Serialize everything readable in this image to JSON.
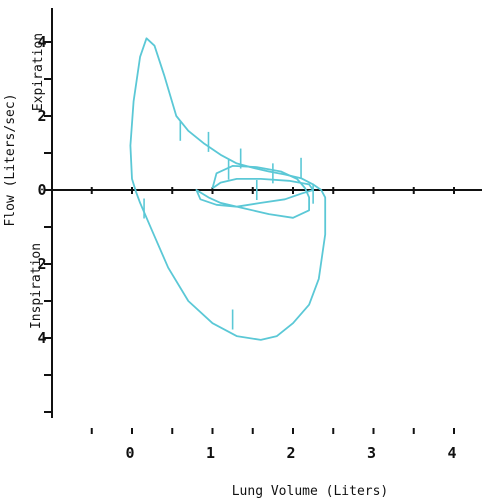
{
  "chart_data": {
    "type": "line",
    "xlabel": "Lung Volume (Liters)",
    "ylabel": "Flow (Liters/sec)",
    "ylabel_upper": "Expiration",
    "ylabel_lower": "Inspiration",
    "xlim": [
      -1,
      5
    ],
    "ylim": [
      -6,
      5
    ],
    "x_ticks": [
      0,
      1,
      2,
      3,
      4
    ],
    "x_tick_labels": [
      "0",
      "1",
      "2",
      "3",
      "4"
    ],
    "y_labeled_ticks": [
      4,
      2,
      0,
      -2,
      -4
    ],
    "y_tick_labels": [
      "4",
      "2",
      "0",
      "2",
      "4"
    ],
    "line_color": "#5bc8d6",
    "series": [
      {
        "points": [
          [
            0.05,
            -0.05
          ],
          [
            0.0,
            0.3
          ],
          [
            -0.02,
            1.2
          ],
          [
            0.02,
            2.4
          ],
          [
            0.1,
            3.6
          ],
          [
            0.18,
            4.1
          ],
          [
            0.28,
            3.9
          ],
          [
            0.4,
            3.1
          ],
          [
            0.55,
            2.0
          ],
          [
            0.7,
            1.6
          ],
          [
            0.9,
            1.25
          ],
          [
            1.1,
            0.95
          ],
          [
            1.3,
            0.72
          ],
          [
            1.5,
            0.6
          ],
          [
            1.7,
            0.5
          ],
          [
            1.9,
            0.42
          ],
          [
            2.1,
            0.32
          ],
          [
            2.25,
            0.15
          ],
          [
            2.35,
            0.0
          ],
          [
            2.4,
            -0.2
          ],
          [
            2.4,
            -1.2
          ],
          [
            2.32,
            -2.4
          ],
          [
            2.2,
            -3.1
          ],
          [
            2.0,
            -3.6
          ],
          [
            1.8,
            -3.95
          ],
          [
            1.6,
            -4.05
          ],
          [
            1.3,
            -3.95
          ],
          [
            1.0,
            -3.6
          ],
          [
            0.7,
            -3.0
          ],
          [
            0.45,
            -2.1
          ],
          [
            0.25,
            -1.1
          ],
          [
            0.1,
            -0.35
          ],
          [
            0.05,
            -0.05
          ]
        ]
      },
      {
        "points": [
          [
            1.0,
            0.05
          ],
          [
            1.05,
            0.45
          ],
          [
            1.25,
            0.65
          ],
          [
            1.55,
            0.62
          ],
          [
            1.85,
            0.5
          ],
          [
            2.05,
            0.3
          ],
          [
            2.15,
            0.05
          ],
          [
            2.2,
            -0.2
          ],
          [
            2.2,
            -0.55
          ],
          [
            2.0,
            -0.75
          ],
          [
            1.7,
            -0.65
          ],
          [
            1.4,
            -0.5
          ],
          [
            1.1,
            -0.35
          ],
          [
            0.95,
            -0.2
          ],
          [
            0.8,
            0.0
          ],
          [
            0.85,
            -0.25
          ],
          [
            1.05,
            -0.4
          ],
          [
            1.3,
            -0.45
          ],
          [
            1.6,
            -0.35
          ],
          [
            1.9,
            -0.25
          ],
          [
            2.1,
            -0.1
          ],
          [
            2.25,
            0.0
          ],
          [
            2.2,
            0.15
          ],
          [
            1.95,
            0.25
          ],
          [
            1.6,
            0.3
          ],
          [
            1.3,
            0.3
          ],
          [
            1.1,
            0.2
          ],
          [
            1.0,
            0.05
          ]
        ]
      }
    ],
    "marker_ticks": [
      [
        0.6,
        1.6
      ],
      [
        0.95,
        1.3
      ],
      [
        1.35,
        0.85
      ],
      [
        1.2,
        0.55
      ],
      [
        1.75,
        0.45
      ],
      [
        2.1,
        0.6
      ],
      [
        1.55,
        0.0
      ],
      [
        2.25,
        -0.1
      ],
      [
        1.25,
        -3.5
      ],
      [
        0.15,
        -0.5
      ]
    ]
  }
}
